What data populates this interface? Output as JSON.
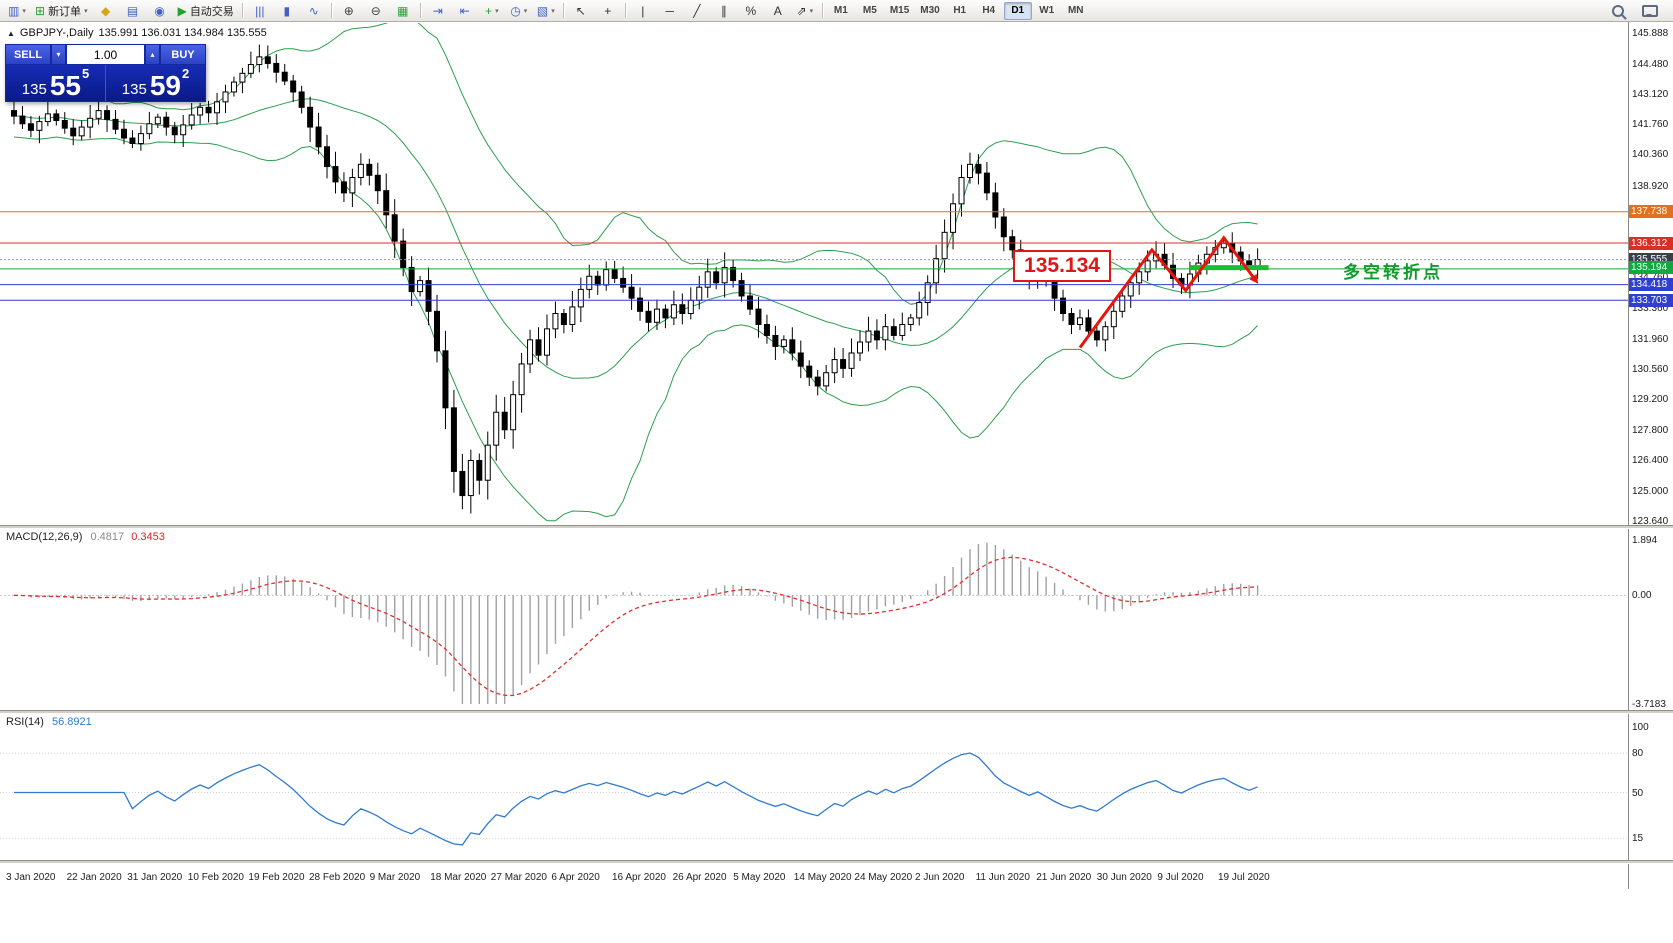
{
  "icons": {
    "collapse": "▲",
    "caret_down": "▾",
    "caret_up": "▴",
    "toolbar_caret": "▾"
  },
  "toolbar": {
    "caret": "▾",
    "groups": [
      {
        "items": [
          {
            "name": "new-chart-button",
            "glyph": "▥",
            "color": "#3f62c8",
            "arrow": true
          },
          {
            "name": "new-order-button",
            "glyph": "⊞",
            "color": "#2fa13b",
            "label": "新订单",
            "arrow": true
          },
          {
            "name": "quotes-button",
            "glyph": "◆",
            "color": "#d9a414"
          },
          {
            "name": "terminal-button",
            "glyph": "▤",
            "color": "#3f62c8"
          },
          {
            "name": "community-button",
            "glyph": "◉",
            "color": "#3f62c8"
          },
          {
            "name": "autotrading-button",
            "glyph": "▶",
            "color": "#1fa32c",
            "label": "自动交易"
          }
        ]
      },
      {
        "items": [
          {
            "name": "bar-chart-button",
            "glyph": "|||",
            "color": "#3f62c8"
          },
          {
            "name": "candlestick-chart-button",
            "glyph": "▮",
            "color": "#3f62c8"
          },
          {
            "name": "line-chart-button",
            "glyph": "∿",
            "color": "#3f62c8"
          }
        ]
      },
      {
        "items": [
          {
            "name": "zoom-in-button",
            "glyph": "⊕",
            "color": "#444"
          },
          {
            "name": "zoom-out-button",
            "glyph": "⊖",
            "color": "#444"
          },
          {
            "name": "tile-windows-button",
            "glyph": "▦",
            "color": "#2fa13b"
          }
        ]
      },
      {
        "items": [
          {
            "name": "auto-scroll-button",
            "glyph": "⇥",
            "color": "#3f62c8"
          },
          {
            "name": "chart-shift-button",
            "glyph": "⇤",
            "color": "#3f62c8"
          },
          {
            "name": "indicators-button",
            "glyph": "+",
            "color": "#2fa13b",
            "arrow": true
          },
          {
            "name": "periods-button",
            "glyph": "◷",
            "color": "#3f62c8",
            "arrow": true
          },
          {
            "name": "templates-button",
            "glyph": "▧",
            "color": "#3f62c8",
            "arrow": true
          }
        ]
      },
      {
        "items": [
          {
            "name": "cursor-button",
            "glyph": "↖",
            "color": "#333"
          },
          {
            "name": "crosshair-button",
            "glyph": "+",
            "color": "#333"
          }
        ]
      },
      {
        "items": [
          {
            "name": "vertical-line-button",
            "glyph": "|",
            "color": "#333"
          },
          {
            "name": "horizontal-line-button",
            "glyph": "─",
            "color": "#333"
          },
          {
            "name": "trendline-button",
            "glyph": "╱",
            "color": "#333"
          },
          {
            "name": "channel-button",
            "glyph": "∥",
            "color": "#333"
          },
          {
            "name": "fibonacci-button",
            "glyph": "%",
            "color": "#333"
          },
          {
            "name": "text-button",
            "glyph": "A",
            "color": "#333"
          },
          {
            "name": "arrows-button",
            "glyph": "⇗",
            "color": "#333",
            "arrow": true
          }
        ]
      }
    ],
    "timeframes": {
      "items": [
        "M1",
        "M5",
        "M15",
        "M30",
        "H1",
        "H4",
        "D1",
        "W1",
        "MN"
      ],
      "active": "D1"
    },
    "right_icons": [
      {
        "name": "search-icon",
        "css": "i-mag"
      },
      {
        "name": "chat-icon",
        "css": "i-chat"
      }
    ]
  },
  "symbol_header": {
    "symbol": "GBPJPY-,Daily",
    "ohlc": "135.991 136.031 134.984 135.555"
  },
  "trade_panel": {
    "sell_label": "SELL",
    "buy_label": "BUY",
    "volume": "1.00",
    "sell_big": "135",
    "sell_pips": "55",
    "sell_pt": "5",
    "buy_big": "135",
    "buy_pips": "59",
    "buy_pt": "2"
  },
  "annotations": {
    "price_box": {
      "text": "135.134"
    },
    "turning_point": {
      "text": "多空转折点",
      "color": "#0f9c2e"
    },
    "zigzag": {
      "color": "#e8150d",
      "points": [
        [
          126,
          131.55
        ],
        [
          134.5,
          136.0
        ],
        [
          138.5,
          134.15
        ],
        [
          143,
          136.55
        ],
        [
          146.8,
          134.6
        ]
      ]
    },
    "support_segment": {
      "price": 135.194,
      "from": 139,
      "to": 148.3,
      "color": "#16c02e"
    }
  },
  "hlines": [
    {
      "price": 137.738,
      "color": "#e2711d"
    },
    {
      "price": 136.312,
      "color": "#d93025"
    },
    {
      "price": 135.134,
      "color": "#17a82f"
    },
    {
      "price": 134.418,
      "color": "#2f3fd0"
    },
    {
      "price": 133.703,
      "color": "#2f3fd0"
    }
  ],
  "current_price_line": {
    "price": 135.555,
    "color": "#9a9a9a"
  },
  "price_axis": {
    "ticks": [
      "145.888",
      "144.480",
      "143.120",
      "141.760",
      "140.360",
      "138.920",
      "134.760",
      "133.360",
      "131.960",
      "130.560",
      "129.200",
      "127.800",
      "126.400",
      "125.000",
      "123.640"
    ],
    "special": [
      {
        "value": "137.738",
        "bg": "#e2711d"
      },
      {
        "value": "136.312",
        "bg": "#d93025"
      },
      {
        "value": "135.555",
        "bg": "#3a3f4a"
      },
      {
        "value": "135.194",
        "bg": "#11a83c"
      },
      {
        "value": "134.418",
        "bg": "#2f3fd0"
      },
      {
        "value": "133.703",
        "bg": "#2f3fd0"
      }
    ]
  },
  "macd_panel": {
    "title": "MACD(12,26,9)",
    "main_value": "0.4817",
    "signal_value": "0.3453",
    "scale": [
      "1.894",
      "0.00",
      "-3.7183"
    ]
  },
  "rsi_panel": {
    "title": "RSI(14)",
    "value": "56.8921",
    "scale": [
      "100",
      "80",
      "50",
      "15"
    ]
  },
  "date_axis": [
    "3 Jan 2020",
    "22 Jan 2020",
    "31 Jan 2020",
    "10 Feb 2020",
    "19 Feb 2020",
    "28 Feb 2020",
    "9 Mar 2020",
    "18 Mar 2020",
    "27 Mar 2020",
    "6 Apr 2020",
    "16 Apr 2020",
    "26 Apr 2020",
    "5 May 2020",
    "14 May 2020",
    "24 May 2020",
    "2 Jun 2020",
    "11 Jun 2020",
    "21 Jun 2020",
    "30 Jun 2020",
    "9 Jul 2020",
    "19 Jul 2020"
  ],
  "chart_data": {
    "type": "candlestick",
    "symbol": "GBPJPY-",
    "timeframe": "Daily",
    "title": "GBPJPY-,Daily 135.991 136.031 134.984 135.555",
    "ohlc_header": {
      "open": "135.991",
      "high": "136.031",
      "low": "134.984",
      "close": "135.555"
    },
    "price_range": [
      123.504,
      146.116
    ],
    "closes": [
      142.1,
      141.75,
      141.45,
      141.85,
      142.2,
      141.9,
      141.55,
      141.2,
      141.6,
      142.0,
      142.35,
      141.95,
      141.5,
      141.1,
      140.85,
      141.3,
      141.75,
      142.05,
      141.6,
      141.25,
      141.7,
      142.15,
      142.5,
      142.25,
      142.75,
      143.2,
      143.65,
      144.05,
      144.45,
      144.8,
      144.5,
      144.1,
      143.7,
      143.2,
      142.5,
      141.6,
      140.7,
      139.8,
      139.1,
      138.6,
      139.3,
      139.9,
      139.4,
      138.7,
      137.6,
      136.4,
      135.2,
      134.1,
      134.6,
      133.2,
      131.4,
      128.8,
      125.9,
      124.8,
      126.4,
      125.5,
      127.1,
      128.6,
      127.8,
      129.4,
      130.8,
      131.9,
      131.2,
      132.4,
      133.1,
      132.6,
      133.4,
      134.2,
      134.8,
      134.4,
      135.1,
      134.7,
      134.3,
      133.8,
      133.2,
      132.7,
      133.3,
      132.9,
      133.5,
      133.1,
      133.7,
      134.3,
      135.0,
      134.5,
      135.2,
      134.6,
      133.9,
      133.3,
      132.6,
      132.1,
      131.6,
      131.9,
      131.3,
      130.7,
      130.2,
      129.8,
      130.4,
      131.0,
      130.6,
      131.3,
      131.8,
      132.3,
      131.9,
      132.5,
      132.1,
      132.6,
      132.9,
      133.6,
      134.5,
      135.6,
      136.8,
      138.1,
      139.3,
      139.9,
      139.5,
      138.6,
      137.5,
      136.6,
      136.0,
      135.4,
      134.8,
      135.3,
      134.6,
      133.8,
      133.1,
      132.6,
      132.9,
      132.3,
      131.9,
      132.5,
      133.2,
      133.9,
      134.5,
      135.0,
      135.5,
      135.8,
      135.3,
      134.7,
      134.4,
      134.9,
      135.4,
      135.8,
      136.1,
      136.3,
      135.9,
      135.5,
      135.2,
      135.56
    ],
    "indicators": [
      {
        "name": "Bollinger Bands",
        "period": 20,
        "deviation": 2,
        "color": "#2d9e4f"
      },
      {
        "name": "MACD",
        "fast": 12,
        "slow": 26,
        "signal": 9,
        "values": [
          0.4817,
          0.3453
        ]
      },
      {
        "name": "RSI",
        "period": 14,
        "value": 56.8921
      }
    ]
  }
}
